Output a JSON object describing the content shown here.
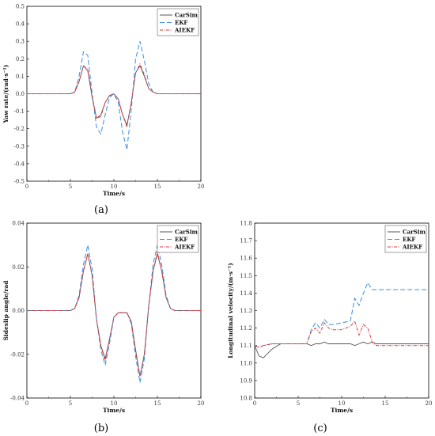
{
  "chart_data": [
    {
      "type": "line",
      "caption": "(a)",
      "xlabel": "Time/s",
      "ylabel": "Yaw rate/(rad·s⁻¹)",
      "xlim": [
        0,
        20
      ],
      "ylim": [
        -0.5,
        0.5
      ],
      "xticks": [
        "0",
        "5",
        "10",
        "15",
        "20"
      ],
      "yticks": [
        "-0.5",
        "-0.4",
        "-0.3",
        "-0.2",
        "-0.1",
        "0.0",
        "0.1",
        "0.2",
        "0.3",
        "0.4",
        "0.5"
      ],
      "legend": "top-right",
      "x": [
        0,
        5,
        5.5,
        6,
        6.5,
        7,
        7.5,
        8,
        8.5,
        9,
        9.5,
        10,
        10.5,
        11,
        11.5,
        12,
        12.5,
        13,
        13.5,
        14,
        14.5,
        15,
        20
      ],
      "series": [
        {
          "name": "CarSim",
          "color": "#555555",
          "dash": "solid",
          "values": [
            0,
            0,
            0.01,
            0.07,
            0.16,
            0.13,
            -0.02,
            -0.14,
            -0.12,
            -0.05,
            -0.01,
            0.0,
            -0.03,
            -0.12,
            -0.18,
            -0.05,
            0.12,
            0.16,
            0.1,
            0.03,
            0.01,
            0,
            0
          ]
        },
        {
          "name": "EKF",
          "color": "#3a8fe0",
          "dash": "6,3",
          "values": [
            0,
            0,
            0.01,
            0.1,
            0.24,
            0.22,
            0.0,
            -0.19,
            -0.23,
            -0.12,
            -0.02,
            0.0,
            -0.05,
            -0.22,
            -0.32,
            -0.09,
            0.2,
            0.3,
            0.19,
            0.06,
            0.01,
            0,
            0
          ]
        },
        {
          "name": "AIEKF",
          "color": "#e03a3a",
          "dash": "4,1.5,1,1.5",
          "values": [
            0,
            0,
            0.01,
            0.07,
            0.16,
            0.14,
            -0.01,
            -0.14,
            -0.13,
            -0.05,
            -0.01,
            0.0,
            -0.03,
            -0.12,
            -0.19,
            -0.05,
            0.12,
            0.17,
            0.11,
            0.03,
            0.01,
            0,
            0
          ]
        }
      ]
    },
    {
      "type": "line",
      "caption": "(b)",
      "xlabel": "Time/s",
      "ylabel": "Sideslip angle/rad",
      "xlim": [
        0,
        20
      ],
      "ylim": [
        -0.04,
        0.04
      ],
      "xticks": [
        "0",
        "5",
        "10",
        "15",
        "20"
      ],
      "yticks": [
        "-0.04",
        "-0.02",
        "0.00",
        "0.02",
        "0.04"
      ],
      "legend": "top-right",
      "x": [
        0,
        5,
        5.5,
        6,
        6.5,
        7,
        7.5,
        8,
        8.5,
        9,
        9.5,
        10,
        10.5,
        11,
        11.5,
        12,
        12.5,
        13,
        13.5,
        14,
        14.5,
        15,
        15.5,
        16,
        16.5,
        17,
        20
      ],
      "series": [
        {
          "name": "CarSim",
          "color": "#555555",
          "dash": "solid",
          "values": [
            0,
            0,
            0.001,
            0.006,
            0.018,
            0.026,
            0.016,
            -0.004,
            -0.016,
            -0.022,
            -0.013,
            -0.003,
            -0.001,
            -0.001,
            -0.001,
            -0.005,
            -0.018,
            -0.03,
            -0.02,
            0.002,
            0.018,
            0.026,
            0.018,
            0.006,
            0.001,
            0,
            0
          ]
        },
        {
          "name": "EKF",
          "color": "#3a8fe0",
          "dash": "6,3",
          "values": [
            0,
            0,
            0.001,
            0.007,
            0.021,
            0.03,
            0.019,
            -0.004,
            -0.018,
            -0.025,
            -0.015,
            -0.003,
            -0.001,
            -0.001,
            -0.001,
            -0.006,
            -0.021,
            -0.033,
            -0.022,
            0.002,
            0.021,
            0.03,
            0.021,
            0.007,
            0.001,
            0,
            0
          ]
        },
        {
          "name": "AIEKF",
          "color": "#e03a3a",
          "dash": "4,1.5,1,1.5",
          "values": [
            0,
            0,
            0.001,
            0.006,
            0.018,
            0.026,
            0.016,
            -0.004,
            -0.016,
            -0.023,
            -0.013,
            -0.003,
            -0.001,
            -0.001,
            -0.001,
            -0.005,
            -0.019,
            -0.03,
            -0.02,
            0.002,
            0.018,
            0.027,
            0.018,
            0.006,
            0.001,
            0,
            0
          ]
        }
      ]
    },
    {
      "type": "line",
      "caption": "(c)",
      "xlabel": "Time/s",
      "ylabel": "Longitudinal velocity/(m·s⁻¹)",
      "xlim": [
        0,
        20
      ],
      "ylim": [
        10.8,
        11.8
      ],
      "xticks": [
        "0",
        "5",
        "10",
        "15",
        "20"
      ],
      "yticks": [
        "10.8",
        "10.9",
        "11.0",
        "11.1",
        "11.2",
        "11.3",
        "11.4",
        "11.5",
        "11.6",
        "11.7",
        "11.8"
      ],
      "legend": "top-right",
      "x": [
        0,
        0.5,
        1,
        2,
        3,
        4,
        5,
        6,
        6.5,
        7,
        7.5,
        8,
        8.5,
        9,
        10,
        11,
        11.5,
        12,
        12.5,
        13,
        13.5,
        14,
        15,
        20
      ],
      "series": [
        {
          "name": "CarSim",
          "color": "#555555",
          "dash": "solid",
          "values": [
            11.1,
            11.04,
            11.03,
            11.08,
            11.11,
            11.11,
            11.11,
            11.11,
            11.1,
            11.11,
            11.11,
            11.12,
            11.11,
            11.11,
            11.11,
            11.11,
            11.1,
            11.11,
            11.12,
            11.11,
            11.12,
            11.11,
            11.11,
            11.11
          ]
        },
        {
          "name": "EKF",
          "color": "#3a8fe0",
          "dash": "6,3",
          "values": [
            11.1,
            11.09,
            11.1,
            11.11,
            11.11,
            11.11,
            11.11,
            11.11,
            11.19,
            11.23,
            11.2,
            11.25,
            11.22,
            11.22,
            11.23,
            11.24,
            11.37,
            11.33,
            11.4,
            11.46,
            11.42,
            11.42,
            11.42,
            11.42
          ]
        },
        {
          "name": "AIEKF",
          "color": "#e03a3a",
          "dash": "4,1.5,1,1.5",
          "values": [
            11.1,
            11.09,
            11.1,
            11.11,
            11.11,
            11.11,
            11.11,
            11.11,
            11.18,
            11.2,
            11.17,
            11.23,
            11.2,
            11.19,
            11.19,
            11.21,
            11.24,
            11.16,
            11.22,
            11.2,
            11.12,
            11.1,
            11.1,
            11.1
          ]
        }
      ]
    }
  ]
}
